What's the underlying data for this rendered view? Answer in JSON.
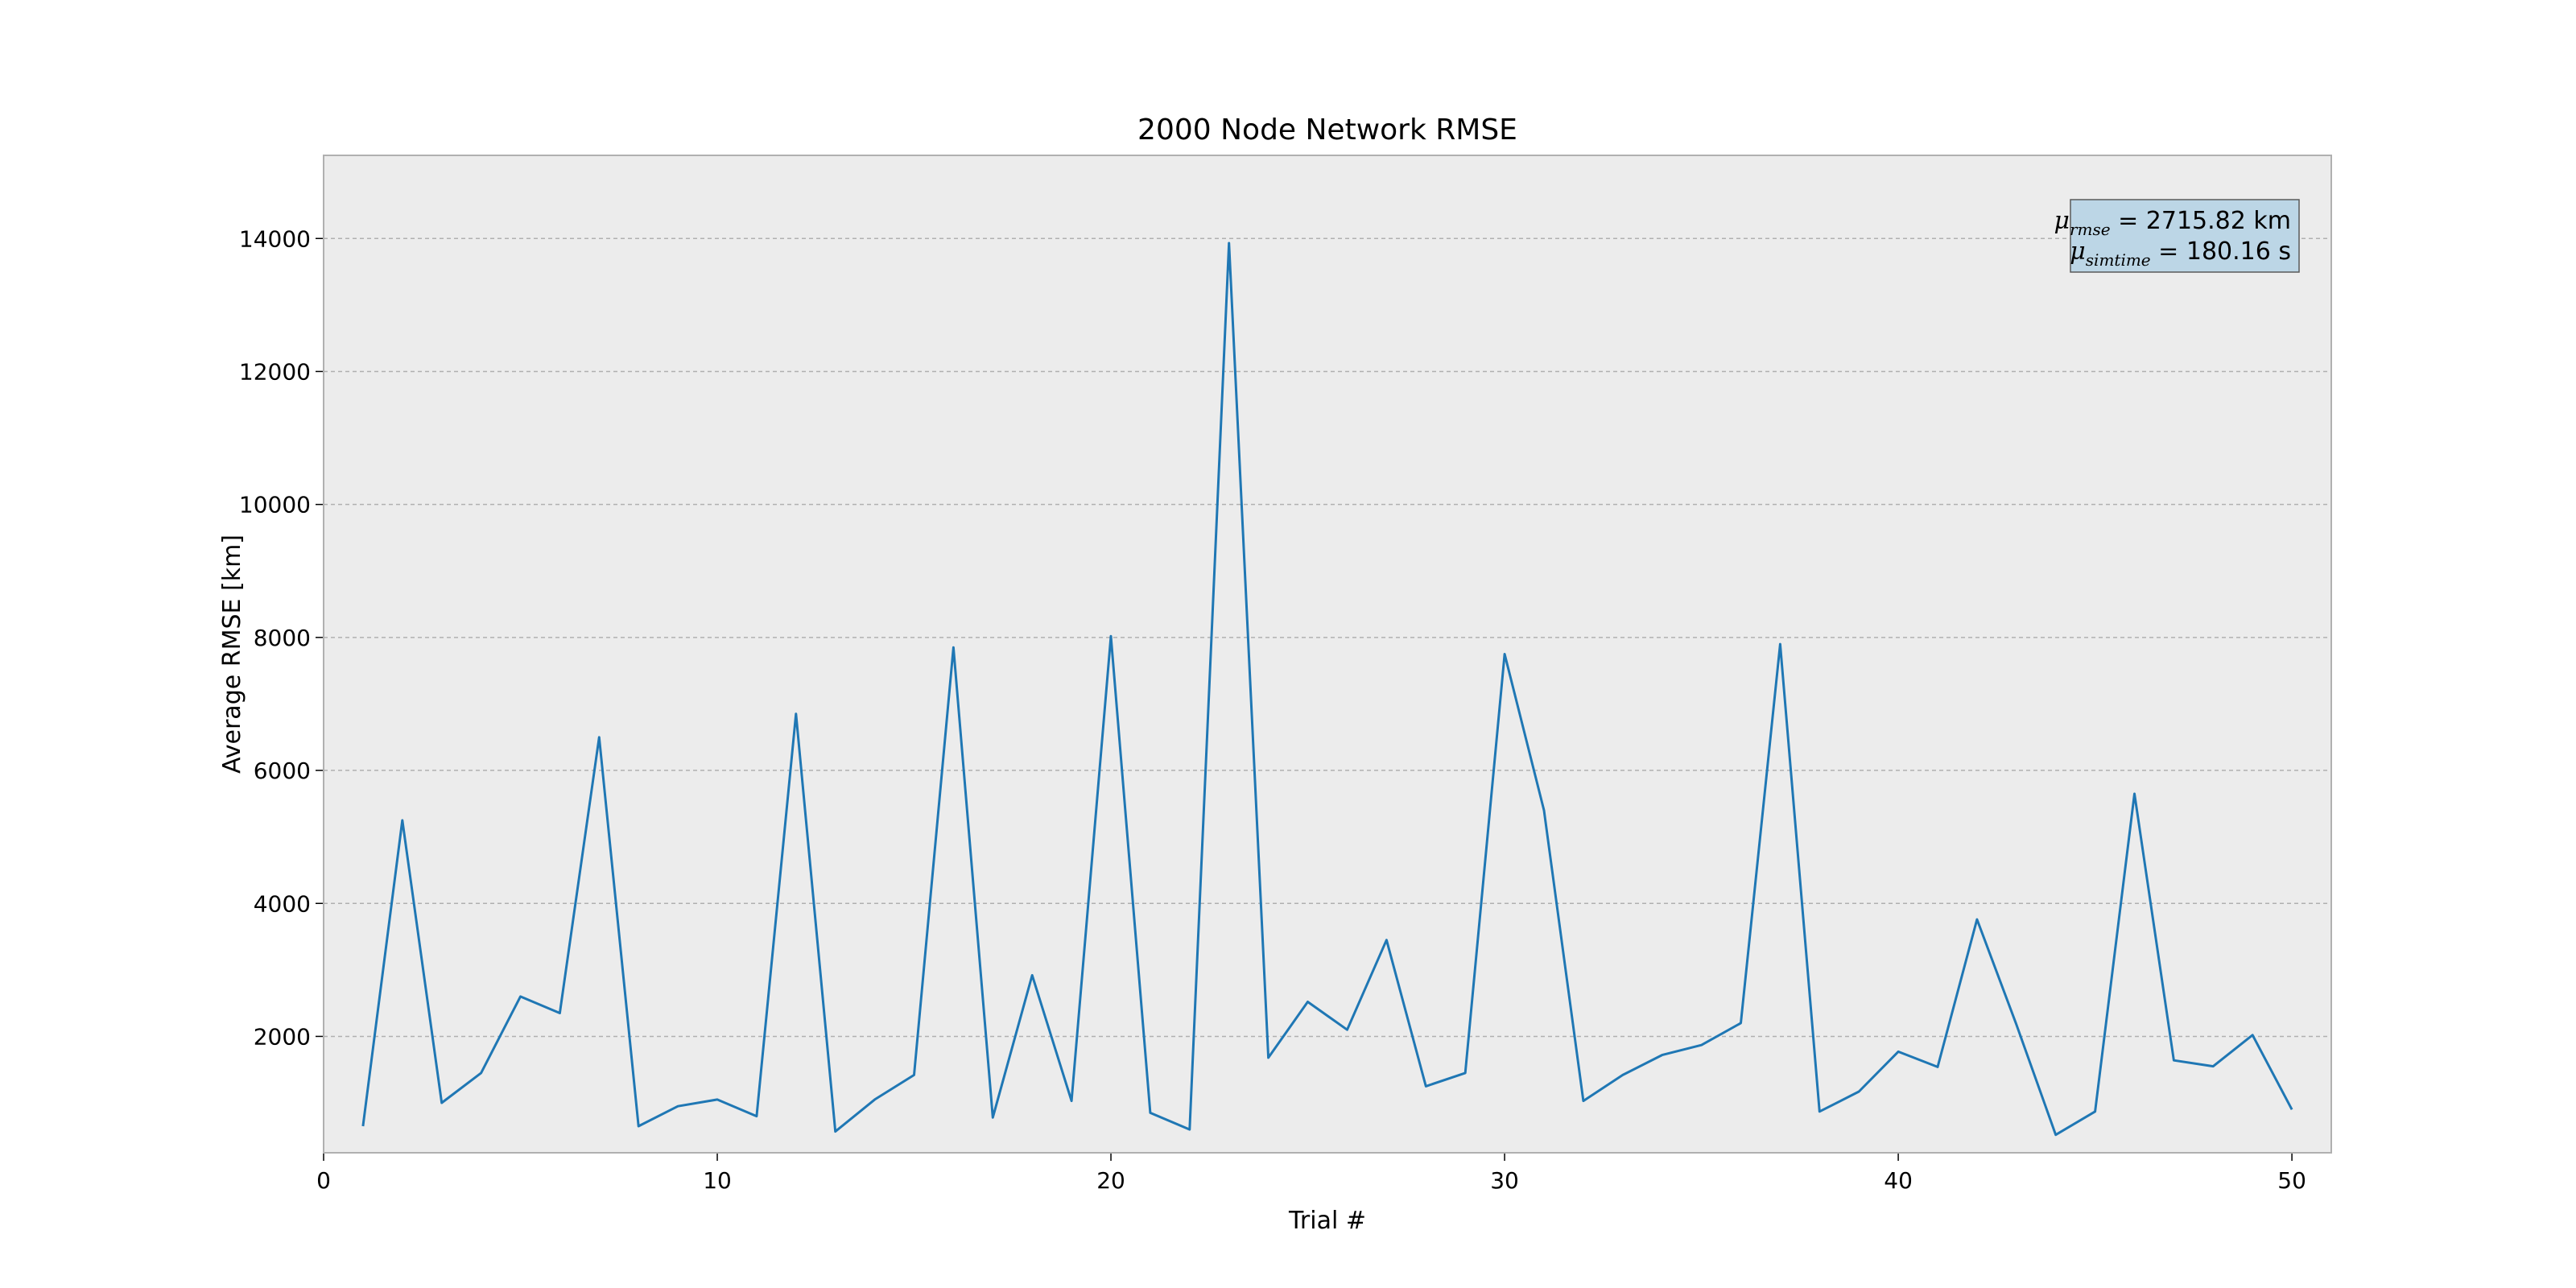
{
  "chart_data": {
    "type": "line",
    "title": "2000 Node Network RMSE",
    "xlabel": "Trial #",
    "ylabel": "Average RMSE [km]",
    "xlim": [
      0,
      51
    ],
    "ylim": [
      250,
      15250
    ],
    "xticks": [
      0,
      10,
      20,
      30,
      40,
      50
    ],
    "yticks": [
      2000,
      4000,
      6000,
      8000,
      10000,
      12000,
      14000
    ],
    "grid": "horizontal-dashed",
    "colors": {
      "line": "#1f77b4",
      "plot_background": "#ececec",
      "frame": "#b0b0b0",
      "grid": "#b0b0b0",
      "stats_box_fill": "#bcd6e6",
      "stats_box_edge": "#5a5a5a"
    },
    "series": [
      {
        "x": [
          1,
          2,
          3,
          4,
          5,
          6,
          7,
          8,
          9,
          10,
          11,
          12,
          13,
          14,
          15,
          16,
          17,
          18,
          19,
          20,
          21,
          22,
          23,
          24,
          25,
          26,
          27,
          28,
          29,
          30,
          31,
          32,
          33,
          34,
          35,
          36,
          37,
          38,
          39,
          40,
          41,
          42,
          43,
          44,
          45,
          46,
          47,
          48,
          49,
          50
        ],
        "values": [
          650,
          5250,
          1000,
          1450,
          2600,
          2350,
          6500,
          650,
          950,
          1050,
          800,
          6850,
          570,
          1050,
          1420,
          7850,
          780,
          2920,
          1030,
          8020,
          850,
          600,
          13930,
          1680,
          2520,
          2100,
          3450,
          1250,
          1450,
          7750,
          5400,
          1030,
          1420,
          1720,
          1870,
          2200,
          7900,
          870,
          1170,
          1770,
          1540,
          3760,
          2180,
          520,
          870,
          5650,
          1640,
          1550,
          2020,
          900
        ]
      }
    ],
    "annotations": {
      "stats_box": {
        "placement": "top-right",
        "line1": {
          "symbol": "μ",
          "subscript": "rmse",
          "value_text": "2715.82 km"
        },
        "line2": {
          "symbol": "μ",
          "subscript": "simtime",
          "value_text": "180.16 s"
        }
      }
    }
  }
}
